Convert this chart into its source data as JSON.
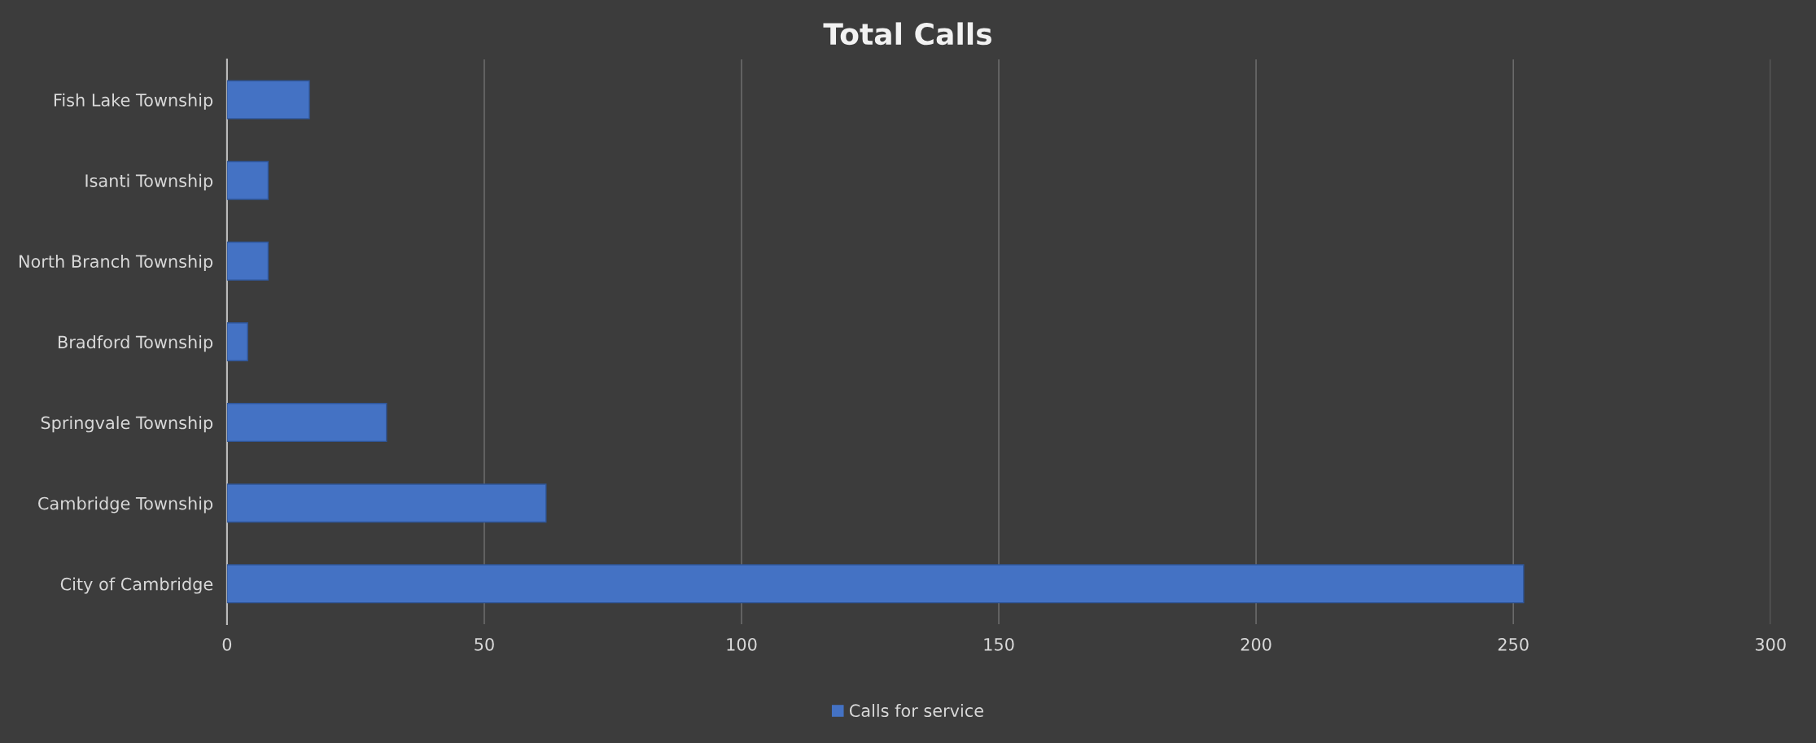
{
  "chart_data": {
    "type": "bar",
    "orientation": "horizontal",
    "title": "Total Calls",
    "categories": [
      "Fish Lake Township",
      "Isanti Township",
      "North Branch Township",
      "Bradford Township",
      "Springvale Township",
      "Cambridge Township",
      "City of Cambridge"
    ],
    "series": [
      {
        "name": "Calls for service",
        "color": "#4472c4",
        "values": [
          16,
          8,
          8,
          4,
          31,
          62,
          252
        ]
      }
    ],
    "xlim": [
      0,
      300
    ],
    "xticks": [
      0,
      50,
      100,
      150,
      200,
      250,
      300
    ],
    "grid": "x",
    "legend": "bottom"
  }
}
